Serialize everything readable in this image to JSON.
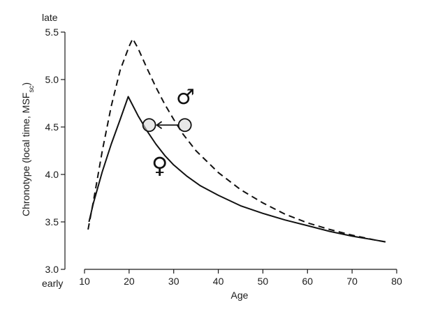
{
  "chart_data": {
    "type": "line",
    "xlabel": "Age",
    "ylabel": "Chronotype (local time, MSF",
    "ylabel_subscript": "sc",
    "ylabel_close": ")",
    "y_top_label": "late",
    "y_bottom_label": "early",
    "xlim": [
      10,
      80
    ],
    "ylim": [
      3.0,
      5.5
    ],
    "xticks": [
      10,
      20,
      30,
      40,
      50,
      60,
      70,
      80
    ],
    "yticks": [
      3.0,
      3.5,
      4.0,
      4.5,
      5.0,
      5.5
    ],
    "ytick_labels": [
      "3.0",
      "3.5",
      "4.0",
      "4.5",
      "5.0",
      "5.5"
    ],
    "grid": false,
    "series": [
      {
        "style": "dashed",
        "points": [
          [
            10.8,
            3.42
          ],
          [
            12,
            3.72
          ],
          [
            14,
            4.25
          ],
          [
            16,
            4.72
          ],
          [
            18,
            5.1
          ],
          [
            20,
            5.35
          ],
          [
            20.8,
            5.43
          ],
          [
            22,
            5.33
          ],
          [
            24,
            5.12
          ],
          [
            26,
            4.92
          ],
          [
            28,
            4.74
          ],
          [
            30,
            4.58
          ],
          [
            32,
            4.43
          ],
          [
            35,
            4.25
          ],
          [
            40,
            4.02
          ],
          [
            45,
            3.84
          ],
          [
            50,
            3.7
          ],
          [
            55,
            3.58
          ],
          [
            60,
            3.49
          ],
          [
            65,
            3.42
          ],
          [
            70,
            3.36
          ],
          [
            75,
            3.31
          ],
          [
            77.5,
            3.29
          ]
        ]
      },
      {
        "style": "solid",
        "points": [
          [
            11,
            3.5
          ],
          [
            12,
            3.7
          ],
          [
            14,
            4.03
          ],
          [
            16,
            4.32
          ],
          [
            18,
            4.58
          ],
          [
            19.8,
            4.82
          ],
          [
            22,
            4.62
          ],
          [
            24,
            4.46
          ],
          [
            26,
            4.32
          ],
          [
            28,
            4.2
          ],
          [
            30,
            4.1
          ],
          [
            33,
            3.98
          ],
          [
            36,
            3.88
          ],
          [
            40,
            3.78
          ],
          [
            45,
            3.67
          ],
          [
            50,
            3.59
          ],
          [
            55,
            3.52
          ],
          [
            60,
            3.46
          ],
          [
            65,
            3.4
          ],
          [
            70,
            3.35
          ],
          [
            75,
            3.31
          ],
          [
            77.5,
            3.29
          ]
        ]
      }
    ],
    "annotations": {
      "male_symbol": "♂",
      "female_symbol": "♀",
      "arrow": {
        "from": [
          32.5,
          4.52
        ],
        "to": [
          24.5,
          4.52
        ]
      }
    }
  }
}
